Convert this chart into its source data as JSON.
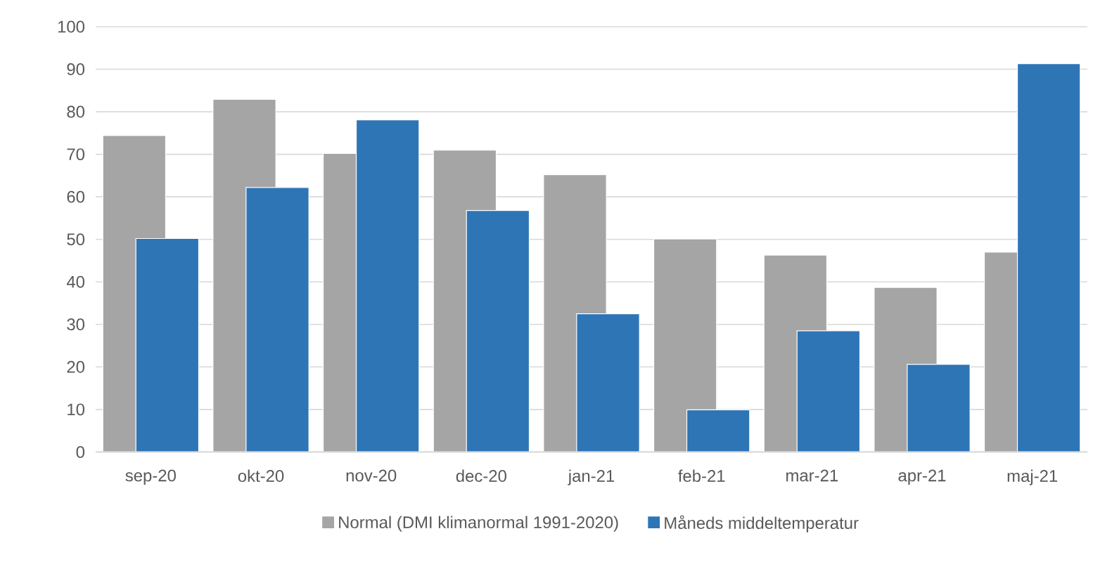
{
  "chart_data": {
    "type": "bar",
    "categories": [
      "sep-20",
      "okt-20",
      "nov-20",
      "dec-20",
      "jan-21",
      "feb-21",
      "mar-21",
      "apr-21",
      "maj-21"
    ],
    "series": [
      {
        "name": "Normal (DMI klimanormal 1991-2020)",
        "color": "#a5a5a5",
        "values": [
          74.4,
          82.9,
          70.2,
          71.0,
          65.2,
          50.1,
          46.3,
          38.7,
          47.0
        ]
      },
      {
        "name": "Måneds middeltemperatur",
        "color": "#2e75b6",
        "values": [
          50.2,
          62.2,
          78.1,
          56.8,
          32.5,
          9.9,
          28.5,
          20.6,
          91.3
        ]
      }
    ],
    "ylim": [
      0,
      100
    ],
    "yticks": [
      0,
      10,
      20,
      30,
      40,
      50,
      60,
      70,
      80,
      90,
      100
    ],
    "grid": "y",
    "legend": "bottom"
  }
}
